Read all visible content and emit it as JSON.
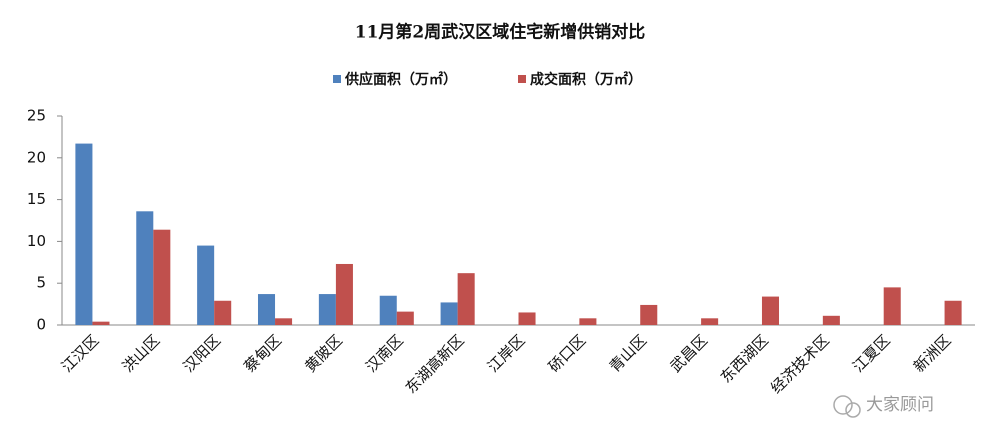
{
  "chart_data": {
    "type": "bar",
    "title": "11月第2周武汉区域住宅新增供销对比",
    "categories": [
      "江汉区",
      "洪山区",
      "汉阳区",
      "蔡甸区",
      "黄陂区",
      "汉南区",
      "东湖高新区",
      "江岸区",
      "硚口区",
      "青山区",
      "武昌区",
      "东西湖区",
      "经济技术区",
      "江夏区",
      "新洲区"
    ],
    "series": [
      {
        "name": "供应面积（万㎡）",
        "color": "#4f81bd",
        "values": [
          21.7,
          13.6,
          9.5,
          3.7,
          3.7,
          3.5,
          2.7,
          0,
          0,
          0,
          0,
          0,
          0,
          0,
          0
        ]
      },
      {
        "name": "成交面积（万㎡）",
        "color": "#c0504d",
        "values": [
          0.4,
          11.4,
          2.9,
          0.8,
          7.3,
          1.6,
          6.2,
          1.5,
          0.8,
          2.4,
          0.8,
          3.4,
          1.1,
          4.5,
          2.9
        ]
      }
    ],
    "ylim": [
      0,
      25
    ],
    "yticks": [
      0,
      5,
      10,
      15,
      20,
      25
    ],
    "grid": false,
    "legend": "top"
  },
  "watermark": "大家顾问"
}
